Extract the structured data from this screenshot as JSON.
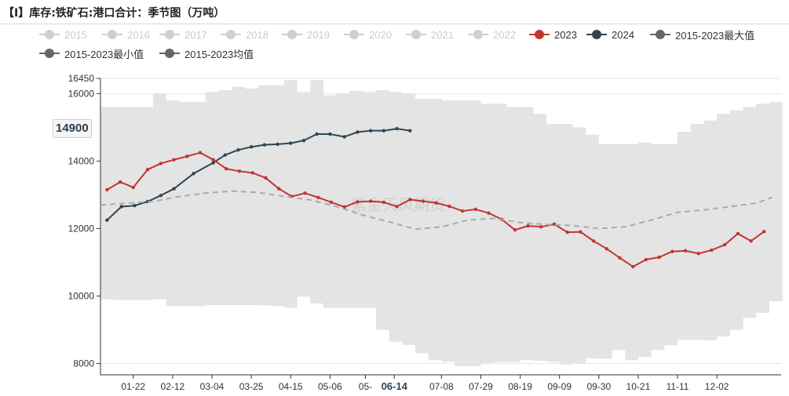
{
  "title": "【I】库存:铁矿石:港口合计：季节图（万吨）",
  "legend": [
    {
      "name": "2015",
      "color": "#cfcfcf",
      "active": false
    },
    {
      "name": "2016",
      "color": "#cfcfcf",
      "active": false
    },
    {
      "name": "2017",
      "color": "#cfcfcf",
      "active": false
    },
    {
      "name": "2018",
      "color": "#cfcfcf",
      "active": false
    },
    {
      "name": "2019",
      "color": "#cfcfcf",
      "active": false
    },
    {
      "name": "2020",
      "color": "#cfcfcf",
      "active": false
    },
    {
      "name": "2021",
      "color": "#cfcfcf",
      "active": false
    },
    {
      "name": "2022",
      "color": "#cfcfcf",
      "active": false
    },
    {
      "name": "2023",
      "color": "#c23531",
      "active": true
    },
    {
      "name": "2024",
      "color": "#2f4554",
      "active": true
    },
    {
      "name": "2015-2023最大值",
      "color": "#666666",
      "active": true
    },
    {
      "name": "2015-2023最小值",
      "color": "#666666",
      "active": true
    },
    {
      "name": "2015-2023均值",
      "color": "#666666",
      "active": true
    }
  ],
  "watermark": "紫金天风期货",
  "axis_pointer_label": "14900",
  "chart_data": {
    "type": "line",
    "title": "【I】库存:铁矿石:港口合计：季节图（万吨）",
    "ylim": [
      7850,
      16450
    ],
    "y_ticks": [
      8000,
      10000,
      12000,
      14000,
      16000,
      16450
    ],
    "x_tick_labels": [
      "01-22",
      "02-12",
      "03-04",
      "03-25",
      "04-15",
      "05-06",
      "05-",
      "06-14",
      "07-08",
      "07-29",
      "08-19",
      "09-09",
      "09-30",
      "10-21",
      "11-11",
      "12-02"
    ],
    "x_tick_weeks": [
      2.5,
      5.5,
      8.5,
      11.5,
      14.5,
      17.5,
      20.2,
      22.4,
      26,
      29,
      32,
      35,
      38,
      41,
      44,
      47
    ],
    "highlight_tick": "06-14",
    "grid": true,
    "legend_position": "top-left",
    "band_max": [
      15600,
      15600,
      15600,
      15600,
      16000,
      15800,
      15750,
      15750,
      16050,
      16100,
      16200,
      16150,
      16250,
      16250,
      16400,
      16050,
      16400,
      15950,
      16000,
      16080,
      16050,
      16100,
      16050,
      16000,
      15850,
      15850,
      15800,
      15800,
      15800,
      15700,
      15700,
      15600,
      15600,
      15400,
      15100,
      15100,
      15000,
      14780,
      14500,
      14500,
      14500,
      14550,
      14500,
      14500,
      14870,
      15100,
      15200,
      15400,
      15500,
      15600,
      15700,
      15750
    ],
    "band_min": [
      9900,
      9880,
      9880,
      9880,
      9900,
      9700,
      9700,
      9700,
      9730,
      9730,
      9730,
      9730,
      9720,
      9700,
      9650,
      9980,
      9780,
      9650,
      9650,
      9650,
      9650,
      9000,
      8650,
      8550,
      8300,
      8100,
      8050,
      7920,
      7920,
      8000,
      8040,
      8040,
      8100,
      8080,
      8050,
      7970,
      8000,
      8150,
      8140,
      8400,
      8100,
      8200,
      8400,
      8540,
      8700,
      8700,
      8690,
      8800,
      9000,
      9350,
      9500,
      9850
    ],
    "series": [
      {
        "name": "2024",
        "color": "#2f4554",
        "x": [
          0.5,
          1.6,
          2.6,
          3.6,
          4.6,
          5.6,
          7.1,
          8.6,
          9.5,
          10.5,
          11.5,
          12.5,
          13.5,
          14.5,
          15.5,
          16.5,
          17.5,
          18.6,
          19.6,
          20.6,
          21.6,
          22.6,
          23.6
        ],
        "values": [
          12250,
          12650,
          12680,
          12800,
          12980,
          13180,
          13630,
          13950,
          14180,
          14330,
          14420,
          14480,
          14500,
          14530,
          14610,
          14800,
          14800,
          14720,
          14860,
          14900,
          14900,
          14960,
          14900
        ]
      },
      {
        "name": "2023",
        "color": "#c23531",
        "x": [
          0.5,
          1.5,
          2.5,
          3.6,
          4.6,
          5.6,
          6.6,
          7.6,
          8.6,
          9.6,
          10.6,
          11.6,
          12.6,
          13.6,
          14.6,
          15.6,
          16.6,
          17.6,
          18.6,
          19.6,
          20.6,
          21.6,
          22.6,
          23.6,
          24.6,
          25.6,
          26.6,
          27.6,
          28.6,
          29.6,
          30.6,
          31.6,
          32.6,
          33.6,
          34.6,
          35.6,
          36.6,
          37.6,
          38.6,
          39.6,
          40.6,
          41.6,
          42.6,
          43.6,
          44.6,
          45.6,
          46.6,
          47.6,
          48.6,
          49.6,
          50.6
        ],
        "values": [
          13150,
          13380,
          13220,
          13750,
          13930,
          14040,
          14140,
          14250,
          14040,
          13770,
          13700,
          13650,
          13500,
          13180,
          12950,
          13050,
          12920,
          12780,
          12640,
          12790,
          12810,
          12780,
          12650,
          12860,
          12810,
          12760,
          12660,
          12520,
          12570,
          12460,
          12270,
          11960,
          12080,
          12050,
          12130,
          11890,
          11900,
          11630,
          11400,
          11130,
          10870,
          11080,
          11150,
          11320,
          11340,
          11260,
          11360,
          11520,
          11850,
          11630,
          11910
        ]
      },
      {
        "name": "2015-2023均值",
        "color": "#aaaaaa",
        "x": [
          0,
          2,
          4,
          6,
          8,
          10,
          12,
          14,
          16,
          18,
          20,
          22,
          24,
          26,
          28,
          30,
          32,
          34,
          36,
          38,
          40,
          42,
          44,
          46,
          48,
          50,
          51.2
        ],
        "values": [
          12700,
          12750,
          12800,
          12950,
          13050,
          13110,
          13070,
          12950,
          12850,
          12650,
          12400,
          12200,
          11980,
          12050,
          12250,
          12300,
          12180,
          12120,
          12090,
          12000,
          12050,
          12250,
          12480,
          12550,
          12650,
          12750,
          12920
        ]
      }
    ]
  }
}
